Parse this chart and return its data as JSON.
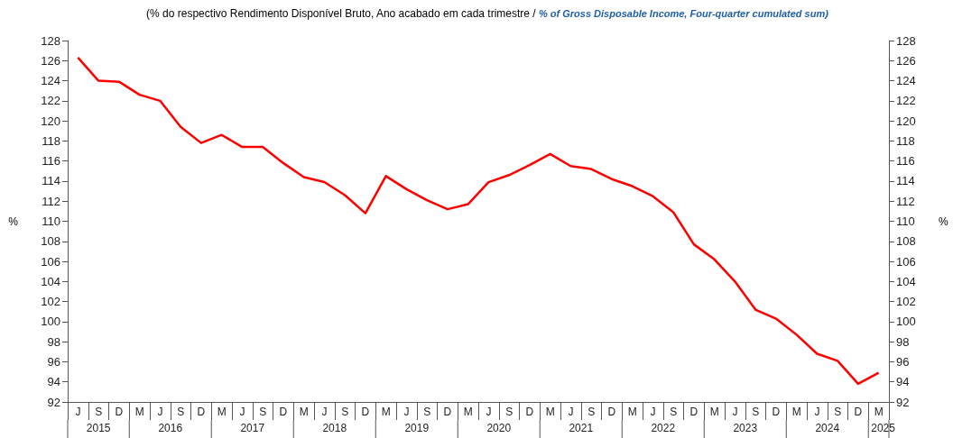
{
  "chart_data": {
    "type": "line",
    "title": "(% do respectivo Rendimento Disponível Bruto, Ano acabado em cada trimestre /",
    "subtitle": "% of Gross Disposable Income, Four-quarter cumulated sum)",
    "ylabel": "%",
    "y2label": "%",
    "categories": [
      "J",
      "S",
      "D",
      "M",
      "J",
      "S",
      "D",
      "M",
      "J",
      "S",
      "D",
      "M",
      "J",
      "S",
      "D",
      "M",
      "J",
      "S",
      "D",
      "M",
      "J",
      "S",
      "D",
      "M",
      "J",
      "S",
      "D",
      "M",
      "J",
      "S",
      "D",
      "M",
      "J",
      "S",
      "D",
      "M",
      "J",
      "S",
      "D",
      "M"
    ],
    "annotations": [
      "2015",
      "2016",
      "2017",
      "2018",
      "2019",
      "2020",
      "2021",
      "2022",
      "2023",
      "2024",
      "2025"
    ],
    "series": [
      {
        "color": "#ff0000",
        "values": [
          126.3,
          124.0,
          123.9,
          122.6,
          122.0,
          119.4,
          117.8,
          118.6,
          117.4,
          117.4,
          115.8,
          114.4,
          113.9,
          112.6,
          110.8,
          114.5,
          113.2,
          112.1,
          111.2,
          111.7,
          113.9,
          114.6,
          115.6,
          116.7,
          115.5,
          115.2,
          114.2,
          113.5,
          112.5,
          110.9,
          107.7,
          106.2,
          104.0,
          101.2,
          100.3,
          98.7,
          96.8,
          96.1,
          93.8,
          94.9
        ]
      }
    ],
    "ylim": [
      92,
      128
    ],
    "yticks": [
      92,
      94,
      96,
      98,
      100,
      102,
      104,
      106,
      108,
      110,
      112,
      114,
      116,
      118,
      120,
      122,
      124,
      126,
      128
    ],
    "y2lim": [
      92,
      128
    ],
    "y2ticks": [
      92,
      94,
      96,
      98,
      100,
      102,
      104,
      106,
      108,
      110,
      112,
      114,
      116,
      118,
      120,
      122,
      124,
      126,
      128
    ],
    "grid": false,
    "marker": "none",
    "line_style": "solid"
  }
}
